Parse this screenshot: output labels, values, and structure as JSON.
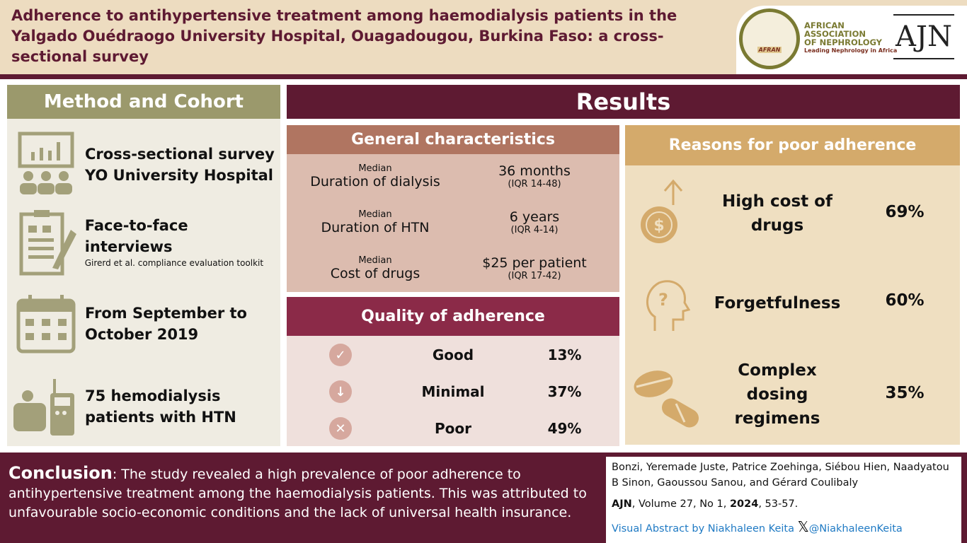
{
  "header": {
    "title": "Adherence to antihypertensive treatment among haemodialysis patients in the Yalgado Ouédraogo University Hospital, Ouagadougou, Burkina Faso:  a cross-sectional survey",
    "logo_afran": {
      "badge": "AFRAN",
      "line1": "AFRICAN",
      "line2": "ASSOCIATION",
      "line3": "OF NEPHROLOGY",
      "tagline": "Leading Nephrology in Africa"
    },
    "logo_ajn": "AJN"
  },
  "method": {
    "title": "Method and Cohort",
    "items": [
      {
        "icon": "chart-people-icon",
        "text1": "Cross-sectional survey",
        "text2": "YO University Hospital"
      },
      {
        "icon": "clipboard-icon",
        "text1": "Face-to-face interviews",
        "sub": "Girerd et al. compliance evaluation toolkit"
      },
      {
        "icon": "calendar-icon",
        "text1": "From September to",
        "text2": "October 2019"
      },
      {
        "icon": "dialysis-icon",
        "text1": "75 hemodialysis",
        "text2": "patients with HTN"
      }
    ]
  },
  "results": {
    "title": "Results",
    "general": {
      "title": "General characteristics",
      "rows": [
        {
          "small": "Median",
          "label": "Duration of dialysis",
          "value": "36 months",
          "iqr": "(IQR 14-48)"
        },
        {
          "small": "Median",
          "label": "Duration of HTN",
          "value": "6 years",
          "iqr": "(IQR 4-14)"
        },
        {
          "small": "Median",
          "label": "Cost of drugs",
          "value": "$25 per patient",
          "iqr": "(IQR 17-42)"
        }
      ]
    },
    "quality": {
      "title": "Quality of adherence",
      "rows": [
        {
          "icon": "check-icon",
          "glyph": "✓",
          "label": "Good",
          "value": "13%"
        },
        {
          "icon": "down-arrow-icon",
          "glyph": "↓",
          "label": "Minimal",
          "value": "37%"
        },
        {
          "icon": "x-icon",
          "glyph": "✕",
          "label": "Poor",
          "value": "49%"
        }
      ]
    },
    "reasons": {
      "title": "Reasons for poor adherence",
      "rows": [
        {
          "icon": "dollar-coin-icon",
          "l1": "High cost of",
          "l2": "drugs",
          "value": "69%"
        },
        {
          "icon": "head-question-icon",
          "l1": "Forgetfulness",
          "value": "60%"
        },
        {
          "icon": "pills-icon",
          "l1": "Complex",
          "l2": "dosing",
          "l3": "regimens",
          "value": "35%"
        }
      ]
    }
  },
  "conclusion": {
    "label": "Conclusion",
    "text": ": The study revealed a high prevalence of poor adherence to antihypertensive treatment among the haemodialysis patients. This was attributed to unfavourable socio-economic conditions and the lack of universal health insurance."
  },
  "reference": {
    "authors": "Bonzi, Yeremade Juste, Patrice Zoehinga, Siébou Hien, Naadyatou B Sinon, Gaoussou Sanou, and Gérard Coulibaly",
    "journal": "AJN",
    "mid": ", Volume 27, No 1, ",
    "year": "2024",
    "pages": ", 53-57.",
    "credit": "Visual Abstract by Niakhaleen Keita",
    "handle": "@NiakhaleenKeita"
  },
  "colors": {
    "maroon": "#5e1a32",
    "olive": "#9b996c",
    "gold": "#d4aa6b"
  }
}
